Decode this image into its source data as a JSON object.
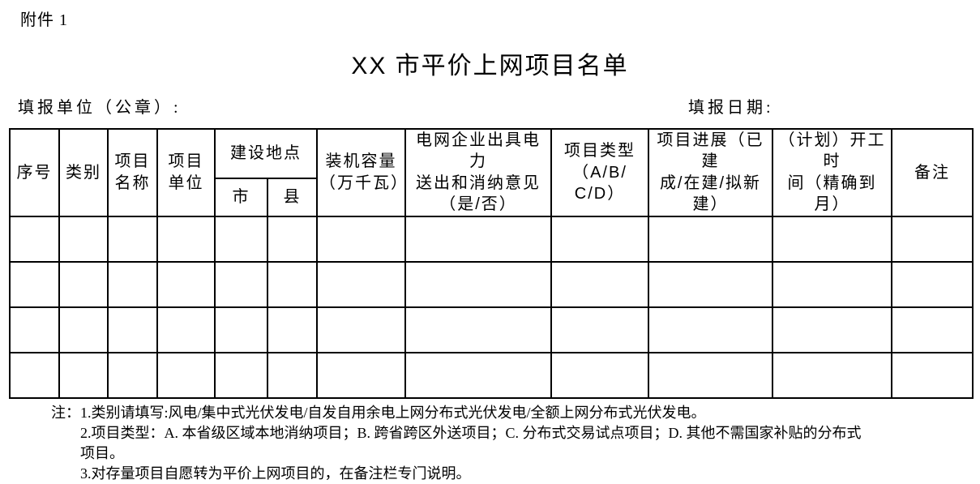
{
  "page": {
    "attachment_label": "附件 1",
    "title": "XX 市平价上网项目名单",
    "reporting_unit_label": "填报单位（公章）:",
    "reporting_date_label": "填报日期:"
  },
  "table": {
    "column_count": 12,
    "empty_rows": 4,
    "headers": {
      "serial": "序号",
      "category": "类别",
      "project_name": "项目\n名称",
      "project_unit": "项目\n单位",
      "construction_site": "建设地点",
      "city": "市",
      "county": "县",
      "capacity": "装机容量\n（万千瓦）",
      "grid_opinion": "电网企业出具电力\n送出和消纳意见\n（是/否）",
      "project_type": "项目类型\n（A/B/\nC/D）",
      "progress": "项目进展（已建\n成/在建/拟新\n建）",
      "start_time": "（计划）开工时\n间（精确到月）",
      "remarks": "备注"
    }
  },
  "notes": {
    "prefix": "注：",
    "items": [
      "1.类别请填写:风电/集中式光伏发电/自发自用余电上网分布式光伏发电/全额上网分布式光伏发电。",
      "2.项目类型：A. 本省级区域本地消纳项目；B. 跨省跨区外送项目；C. 分布式交易试点项目；D. 其他不需国家补贴的分布式项目。",
      "3.对存量项目自愿转为平价上网项目的，在备注栏专门说明。"
    ]
  }
}
